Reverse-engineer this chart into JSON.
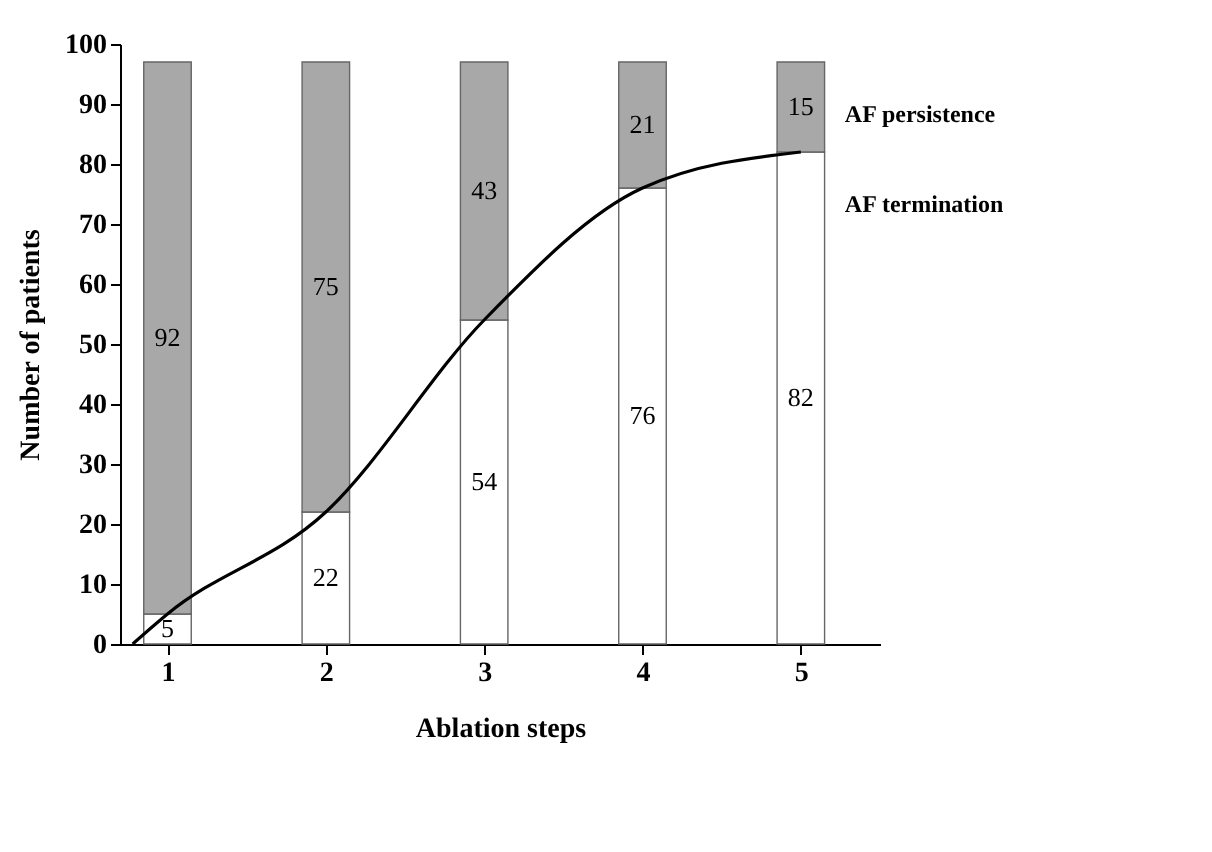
{
  "chart_data": {
    "type": "bar",
    "stacked": true,
    "xlabel": "Ablation steps",
    "ylabel": "Number of patients",
    "x": [
      1,
      2,
      3,
      4,
      5
    ],
    "xlim": [
      0.7,
      5.5
    ],
    "xticks": [
      1,
      2,
      3,
      4,
      5
    ],
    "ylim": [
      0,
      100
    ],
    "yticks": [
      0,
      10,
      20,
      30,
      40,
      50,
      60,
      70,
      80,
      90,
      100
    ],
    "legend": false,
    "grid": false,
    "marker": "none",
    "line_style": "solid",
    "series": [
      {
        "name": "AF termination",
        "color": "#ffffff",
        "values": [
          5,
          22,
          54,
          76,
          82
        ],
        "value_labels": [
          "5",
          "22",
          "54",
          "76",
          "82"
        ]
      },
      {
        "name": "AF persistence",
        "color": "#a8a8a8",
        "values": [
          92,
          75,
          43,
          21,
          15
        ],
        "value_labels": [
          "92",
          "75",
          "43",
          "21",
          "15"
        ]
      },
      {
        "type": "line",
        "color": "#000000",
        "x": [
          0.78,
          1,
          2,
          3,
          4,
          5
        ],
        "values": [
          0,
          5,
          22,
          54,
          76,
          82
        ]
      }
    ]
  }
}
